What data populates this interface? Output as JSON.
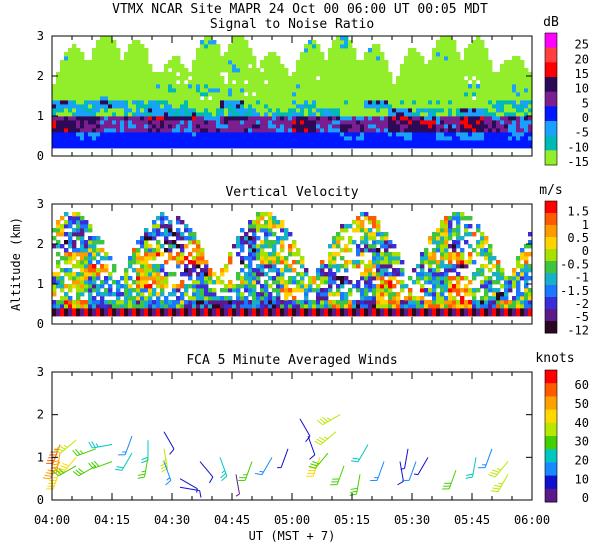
{
  "header": "VTMX   NCAR Site   MAPR 24 Oct 00   06:00 UT   00:05   MDT",
  "xaxis": {
    "ticks": [
      "04:00",
      "04:15",
      "04:30",
      "04:45",
      "05:00",
      "05:15",
      "05:30",
      "05:45",
      "06:00"
    ],
    "xlabel": "UT  (MST + 7)",
    "xlim_minutes_utc": [
      240,
      360
    ]
  },
  "chart_data": [
    {
      "type": "heatmap",
      "title": "Signal to Noise Ratio",
      "ylabel": "",
      "yticks": [
        "0",
        "1",
        "2",
        "3"
      ],
      "ylim": [
        0,
        3
      ],
      "colorbar": {
        "unit": "dB",
        "levels": [
          "25",
          "20",
          "15",
          "10",
          "5",
          "0",
          "-5",
          "-10",
          "-15"
        ],
        "colors": [
          "#ff00ff",
          "#ff4040",
          "#ff0000",
          "#2d0a55",
          "#7a1f8f",
          "#0018ff",
          "#1aa0ff",
          "#00b8b8",
          "#92ee2a"
        ]
      }
    },
    {
      "type": "heatmap",
      "title": "Vertical Velocity",
      "ylabel": "Altitude (km)",
      "yticks": [
        "0",
        "1",
        "2",
        "3"
      ],
      "ylim": [
        0,
        3
      ],
      "colorbar": {
        "unit": "m/s",
        "levels": [
          "1.5",
          "1",
          "0.5",
          "0",
          "-0.5",
          "-1",
          "-1.5",
          "-2",
          "-5",
          "-12"
        ],
        "colors": [
          "#ff0000",
          "#ff5a00",
          "#ff9a00",
          "#ffd200",
          "#a8e000",
          "#3fc43f",
          "#18b0c8",
          "#1a78ff",
          "#3a2cd8",
          "#5a1a8a",
          "#2a0820"
        ]
      }
    },
    {
      "type": "scatter",
      "title": "FCA 5 Minute Averaged Winds",
      "ylabel": "",
      "yticks": [
        "0",
        "1",
        "2",
        "3"
      ],
      "ylim": [
        0,
        3
      ],
      "colorbar": {
        "unit": "knots",
        "levels": [
          "60",
          "50",
          "40",
          "30",
          "20",
          "10",
          "0"
        ],
        "colors": [
          "#ff0000",
          "#ff5a00",
          "#ffa000",
          "#ffd800",
          "#b8e800",
          "#44d000",
          "#00c8c0",
          "#1a88ff",
          "#1010d0",
          "#5a1a8a"
        ]
      },
      "barbs": [
        {
          "t": 242,
          "alt": 1.3,
          "dir": 200,
          "spd": 55
        },
        {
          "t": 242,
          "alt": 1.1,
          "dir": 190,
          "spd": 50
        },
        {
          "t": 242,
          "alt": 0.9,
          "dir": 210,
          "spd": 48
        },
        {
          "t": 242,
          "alt": 0.7,
          "dir": 200,
          "spd": 45
        },
        {
          "t": 246,
          "alt": 1.4,
          "dir": 230,
          "spd": 35
        },
        {
          "t": 246,
          "alt": 1.0,
          "dir": 220,
          "spd": 40
        },
        {
          "t": 246,
          "alt": 0.8,
          "dir": 240,
          "spd": 30
        },
        {
          "t": 251,
          "alt": 1.2,
          "dir": 250,
          "spd": 28
        },
        {
          "t": 251,
          "alt": 0.8,
          "dir": 240,
          "spd": 32
        },
        {
          "t": 255,
          "alt": 1.3,
          "dir": 260,
          "spd": 25
        },
        {
          "t": 255,
          "alt": 0.9,
          "dir": 250,
          "spd": 30
        },
        {
          "t": 260,
          "alt": 1.5,
          "dir": 200,
          "spd": 18
        },
        {
          "t": 260,
          "alt": 1.1,
          "dir": 210,
          "spd": 22
        },
        {
          "t": 264,
          "alt": 1.4,
          "dir": 180,
          "spd": 20
        },
        {
          "t": 264,
          "alt": 1.0,
          "dir": 190,
          "spd": 26
        },
        {
          "t": 268,
          "alt": 1.6,
          "dir": 150,
          "spd": 12
        },
        {
          "t": 268,
          "alt": 1.2,
          "dir": 170,
          "spd": 35
        },
        {
          "t": 268,
          "alt": 0.9,
          "dir": 160,
          "spd": 15
        },
        {
          "t": 272,
          "alt": 0.5,
          "dir": 120,
          "spd": 8
        },
        {
          "t": 272,
          "alt": 0.3,
          "dir": 100,
          "spd": 12
        },
        {
          "t": 277,
          "alt": 0.9,
          "dir": 140,
          "spd": 10
        },
        {
          "t": 282,
          "alt": 1.0,
          "dir": 160,
          "spd": 25
        },
        {
          "t": 286,
          "alt": 0.6,
          "dir": 170,
          "spd": 6
        },
        {
          "t": 290,
          "alt": 0.9,
          "dir": 200,
          "spd": 28
        },
        {
          "t": 295,
          "alt": 1.0,
          "dir": 210,
          "spd": 18
        },
        {
          "t": 299,
          "alt": 1.2,
          "dir": 200,
          "spd": 8
        },
        {
          "t": 302,
          "alt": 1.9,
          "dir": 150,
          "spd": 10
        },
        {
          "t": 304,
          "alt": 1.5,
          "dir": 160,
          "spd": 12
        },
        {
          "t": 307,
          "alt": 1.0,
          "dir": 200,
          "spd": 45
        },
        {
          "t": 309,
          "alt": 1.1,
          "dir": 220,
          "spd": 30
        },
        {
          "t": 311,
          "alt": 1.6,
          "dir": 230,
          "spd": 35
        },
        {
          "t": 312,
          "alt": 2.0,
          "dir": 240,
          "spd": 38
        },
        {
          "t": 313,
          "alt": 0.8,
          "dir": 200,
          "spd": 30
        },
        {
          "t": 317,
          "alt": 0.6,
          "dir": 190,
          "spd": 32
        },
        {
          "t": 319,
          "alt": 1.3,
          "dir": 210,
          "spd": 20
        },
        {
          "t": 323,
          "alt": 0.9,
          "dir": 200,
          "spd": 15
        },
        {
          "t": 327,
          "alt": 0.9,
          "dir": 170,
          "spd": 10
        },
        {
          "t": 329,
          "alt": 1.2,
          "dir": 190,
          "spd": 8
        },
        {
          "t": 331,
          "alt": 0.9,
          "dir": 200,
          "spd": 14
        },
        {
          "t": 334,
          "alt": 1.0,
          "dir": 210,
          "spd": 7
        },
        {
          "t": 341,
          "alt": 0.7,
          "dir": 200,
          "spd": 30
        },
        {
          "t": 346,
          "alt": 1.0,
          "dir": 190,
          "spd": 20
        },
        {
          "t": 350,
          "alt": 1.2,
          "dir": 200,
          "spd": 18
        },
        {
          "t": 354,
          "alt": 0.9,
          "dir": 220,
          "spd": 35
        },
        {
          "t": 354,
          "alt": 0.6,
          "dir": 210,
          "spd": 38
        }
      ]
    }
  ]
}
